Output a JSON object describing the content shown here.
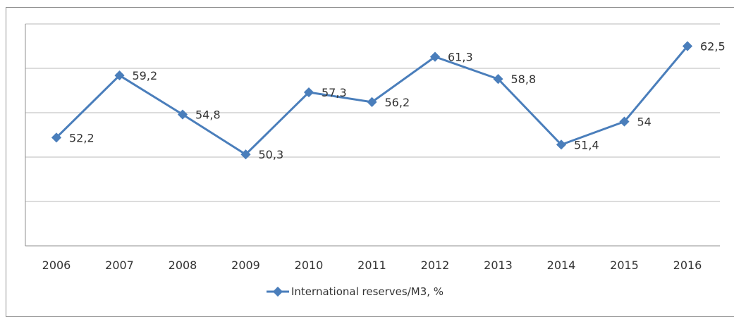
{
  "chart_data": {
    "type": "line",
    "categories": [
      "2006",
      "2007",
      "2008",
      "2009",
      "2010",
      "2011",
      "2012",
      "2013",
      "2014",
      "2015",
      "2016"
    ],
    "series": [
      {
        "name": "International reserves/M3, %",
        "values": [
          52.2,
          59.2,
          54.8,
          50.3,
          57.3,
          56.2,
          61.3,
          58.8,
          51.4,
          54,
          62.5
        ],
        "labels": [
          "52,2",
          "59,2",
          "54,8",
          "50,3",
          "57,3",
          "56,2",
          "61,3",
          "58,8",
          "51,4",
          "54",
          "62,5"
        ],
        "color": "#4a7ebb"
      }
    ],
    "ylim": [
      40,
      65
    ],
    "grid": true,
    "legend": "bottom"
  }
}
